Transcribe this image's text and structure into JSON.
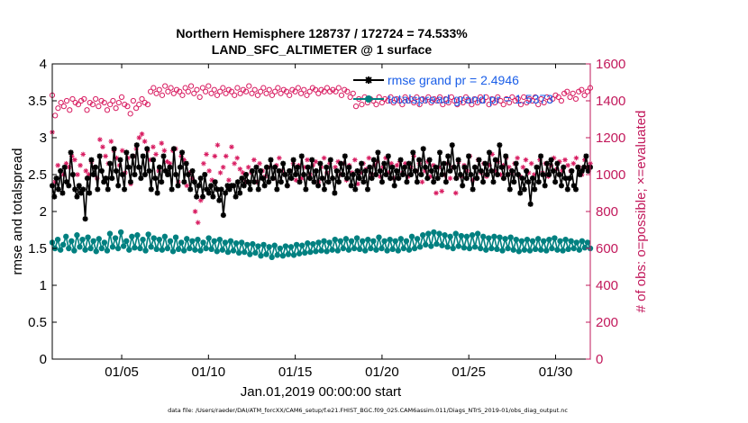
{
  "chart_data": {
    "type": "line",
    "title": "Northern Hemisphere 128737 / 172724 = 74.533%",
    "subtitle": "LAND_SFC_ALTIMETER @ 1 surface",
    "xlabel": "Jan.01,2019 00:00:00 start",
    "ylabel": "rmse and totalspread",
    "ylabel_right": "# of obs: o=possible; ×=evaluated",
    "xlim": [
      1,
      32
    ],
    "ylim": [
      0,
      4
    ],
    "ylim_right": [
      0,
      1600
    ],
    "x_ticks": [
      5,
      10,
      15,
      20,
      25,
      30
    ],
    "x_tick_labels": [
      "01/05",
      "01/10",
      "01/15",
      "01/20",
      "01/25",
      "01/30"
    ],
    "y_ticks": [
      0,
      0.5,
      1,
      1.5,
      2,
      2.5,
      3,
      3.5,
      4
    ],
    "y_tick_labels": [
      "0",
      "0.5",
      "1",
      "1.5",
      "2",
      "2.5",
      "3",
      "3.5",
      "4"
    ],
    "y_ticks_right": [
      0,
      200,
      400,
      600,
      800,
      1000,
      1200,
      1400,
      1600
    ],
    "y_tick_labels_right": [
      "0",
      "200",
      "400",
      "600",
      "800",
      "1000",
      "1200",
      "1400",
      "1600"
    ],
    "grid": false,
    "legend_position": "top-right",
    "colors": {
      "rmse": "#000000",
      "totalspread": "#008080",
      "obs": "#d81b60",
      "right_axis": "#c2185b"
    },
    "series": [
      {
        "name": "rmse grand pr = 2.4946",
        "axis": "left",
        "values": [
          2.35,
          2.2,
          2.45,
          2.3,
          2.55,
          2.25,
          2.6,
          2.4,
          2.35,
          2.8,
          2.5,
          2.3,
          2.2,
          2.35,
          2.25,
          2.3,
          1.9,
          2.45,
          2.25,
          2.7,
          2.5,
          2.6,
          2.3,
          2.75,
          2.55,
          2.4,
          2.45,
          2.3,
          2.65,
          2.45,
          2.85,
          2.55,
          2.35,
          2.7,
          2.5,
          2.3,
          2.8,
          2.6,
          2.4,
          2.75,
          2.5,
          2.9,
          2.6,
          2.45,
          2.75,
          2.5,
          2.85,
          2.55,
          2.3,
          2.7,
          2.45,
          2.25,
          2.6,
          2.4,
          2.75,
          2.55,
          2.5,
          2.6,
          2.3,
          2.85,
          2.5,
          2.35,
          2.6,
          2.8,
          2.4,
          2.65,
          2.5,
          2.3,
          2.55,
          2.4,
          2.2,
          2.35,
          2.45,
          2.2,
          2.5,
          2.3,
          2.25,
          2.35,
          2.2,
          2.4,
          2.3,
          2.15,
          2.3,
          1.95,
          2.25,
          2.35,
          2.3,
          2.35,
          2.35,
          2.2,
          2.4,
          2.25,
          2.45,
          2.35,
          2.5,
          2.4,
          2.3,
          2.55,
          2.4,
          2.6,
          2.3,
          2.55,
          2.45,
          2.35,
          2.6,
          2.4,
          2.7,
          2.45,
          2.6,
          2.3,
          2.55,
          2.4,
          2.65,
          2.5,
          2.35,
          2.55,
          2.45,
          2.7,
          2.5,
          2.6,
          2.4,
          2.75,
          2.5,
          2.3,
          2.6,
          2.45,
          2.7,
          2.4,
          2.55,
          2.35,
          2.65,
          2.45,
          2.3,
          2.6,
          2.4,
          2.7,
          2.45,
          2.25,
          2.55,
          2.4,
          2.65,
          2.5,
          2.75,
          2.45,
          2.6,
          2.35,
          2.5,
          2.3,
          2.55,
          2.45,
          2.65,
          2.4,
          2.55,
          2.3,
          2.6,
          2.45,
          2.7,
          2.5,
          2.8,
          2.55,
          2.4,
          2.65,
          2.5,
          2.75,
          2.45,
          2.6,
          2.35,
          2.55,
          2.45,
          2.7,
          2.5,
          2.6,
          2.4,
          2.65,
          2.5,
          2.8,
          2.55,
          2.4,
          2.7,
          2.5,
          2.85,
          2.6,
          2.45,
          2.7,
          2.55,
          2.4,
          2.6,
          2.45,
          2.8,
          2.5,
          2.65,
          2.4,
          2.75,
          2.55,
          2.9,
          2.6,
          2.45,
          2.7,
          2.5,
          2.35,
          2.6,
          2.45,
          2.75,
          2.5,
          2.3,
          2.6,
          2.45,
          2.7,
          2.55,
          2.4,
          2.65,
          2.5,
          2.8,
          2.55,
          2.4,
          2.7,
          2.5,
          2.9,
          2.6,
          2.45,
          2.75,
          2.5,
          2.3,
          2.55,
          2.4,
          2.65,
          2.5,
          2.25,
          2.45,
          2.3,
          2.55,
          2.4,
          2.1,
          2.45,
          2.3,
          2.6,
          2.4,
          2.75,
          2.5,
          2.35,
          2.65,
          2.5,
          2.7,
          2.55,
          2.4,
          2.65,
          2.5,
          2.35,
          2.6,
          2.45,
          2.3,
          2.45,
          2.55,
          2.35,
          2.3,
          2.6,
          2.5,
          2.55,
          2.6,
          2.75,
          2.55,
          2.6
        ]
      },
      {
        "name": "totalspread grand pr = 1.5373",
        "axis": "left",
        "values": [
          1.58,
          1.5,
          1.62,
          1.48,
          1.55,
          1.66,
          1.5,
          1.6,
          1.47,
          1.68,
          1.52,
          1.62,
          1.48,
          1.65,
          1.5,
          1.6,
          1.46,
          1.63,
          1.5,
          1.58,
          1.47,
          1.7,
          1.52,
          1.64,
          1.5,
          1.72,
          1.53,
          1.6,
          1.48,
          1.66,
          1.51,
          1.68,
          1.5,
          1.62,
          1.47,
          1.69,
          1.52,
          1.64,
          1.49,
          1.62,
          1.48,
          1.66,
          1.5,
          1.6,
          1.46,
          1.65,
          1.49,
          1.58,
          1.47,
          1.63,
          1.5,
          1.6,
          1.48,
          1.62,
          1.47,
          1.58,
          1.5,
          1.64,
          1.49,
          1.6,
          1.46,
          1.62,
          1.48,
          1.58,
          1.45,
          1.6,
          1.47,
          1.57,
          1.44,
          1.58,
          1.45,
          1.55,
          1.42,
          1.56,
          1.44,
          1.53,
          1.4,
          1.55,
          1.42,
          1.52,
          1.38,
          1.54,
          1.41,
          1.5,
          1.4,
          1.53,
          1.42,
          1.52,
          1.41,
          1.55,
          1.43,
          1.54,
          1.44,
          1.57,
          1.45,
          1.56,
          1.46,
          1.58,
          1.47,
          1.6,
          1.46,
          1.58,
          1.48,
          1.62,
          1.47,
          1.6,
          1.5,
          1.63,
          1.48,
          1.6,
          1.5,
          1.64,
          1.49,
          1.6,
          1.47,
          1.62,
          1.5,
          1.6,
          1.48,
          1.65,
          1.5,
          1.6,
          1.47,
          1.62,
          1.49,
          1.6,
          1.47,
          1.63,
          1.5,
          1.6,
          1.48,
          1.66,
          1.5,
          1.63,
          1.52,
          1.68,
          1.55,
          1.7,
          1.53,
          1.72,
          1.56,
          1.7,
          1.54,
          1.68,
          1.52,
          1.66,
          1.5,
          1.7,
          1.53,
          1.67,
          1.51,
          1.66,
          1.5,
          1.68,
          1.52,
          1.7,
          1.5,
          1.66,
          1.48,
          1.64,
          1.5,
          1.66,
          1.49,
          1.65,
          1.47,
          1.63,
          1.5,
          1.65,
          1.48,
          1.62,
          1.46,
          1.6,
          1.48,
          1.62,
          1.47,
          1.6,
          1.49,
          1.63,
          1.48,
          1.6,
          1.47,
          1.62,
          1.5,
          1.64,
          1.48,
          1.6,
          1.47,
          1.62,
          1.49,
          1.6,
          1.5,
          1.58,
          1.48,
          1.6,
          1.51,
          1.58,
          1.5
        ]
      },
      {
        "name": "possible",
        "axis": "right",
        "marker": "circle",
        "values": [
          1430,
          1320,
          1360,
          1390,
          1370,
          1400,
          1350,
          1410,
          1390,
          1380,
          1400,
          1410,
          1350,
          1390,
          1380,
          1410,
          1370,
          1400,
          1390,
          1350,
          1380,
          1400,
          1360,
          1390,
          1420,
          1380,
          1370,
          1330,
          1400,
          1360,
          1380,
          1410,
          1390,
          1380,
          1450,
          1470,
          1440,
          1460,
          1430,
          1480,
          1450,
          1470,
          1440,
          1460,
          1450,
          1430,
          1470,
          1450,
          1480,
          1440,
          1460,
          1420,
          1470,
          1450,
          1480,
          1440,
          1460,
          1430,
          1450,
          1470,
          1440,
          1460,
          1450,
          1430,
          1470,
          1440,
          1460,
          1450,
          1480,
          1440,
          1460,
          1430,
          1450,
          1470,
          1440,
          1460,
          1430,
          1450,
          1470,
          1440,
          1460,
          1450,
          1430,
          1460,
          1450,
          1470,
          1440,
          1460,
          1430,
          1450,
          1470,
          1460,
          1440,
          1460,
          1450,
          1470,
          1450,
          1460,
          1450,
          1470,
          1430,
          1460,
          1450,
          1420,
          1440,
          1370,
          1410,
          1380,
          1420,
          1390,
          1410,
          1400,
          1380,
          1420,
          1390,
          1410,
          1400,
          1420,
          1390,
          1410,
          1400,
          1380,
          1420,
          1400,
          1410,
          1390,
          1420,
          1380,
          1410,
          1400,
          1420,
          1390,
          1410,
          1400,
          1420,
          1380,
          1410,
          1390,
          1420,
          1400,
          1380,
          1410,
          1390,
          1420,
          1400,
          1380,
          1410,
          1390,
          1420,
          1400,
          1420,
          1380,
          1410,
          1390,
          1420,
          1400,
          1380,
          1410,
          1390,
          1420,
          1400,
          1410,
          1380,
          1420,
          1390,
          1410,
          1400,
          1420,
          1380,
          1410,
          1390,
          1420,
          1400,
          1410,
          1430,
          1420,
          1400,
          1440,
          1450,
          1420,
          1440,
          1410,
          1450,
          1460,
          1430,
          1450,
          1470
        ]
      },
      {
        "name": "evaluated",
        "axis": "right",
        "marker": "asterisk",
        "values": [
          1230,
          960,
          1050,
          1020,
          1000,
          1060,
          1040,
          1100,
          1080,
          1000,
          1050,
          1110,
          1020,
          1000,
          1070,
          1040,
          980,
          1190,
          1150,
          1100,
          1060,
          1180,
          1130,
          1090,
          1050,
          1130,
          1010,
          1090,
          950,
          1100,
          1140,
          1200,
          1220,
          1180,
          1130,
          1080,
          1150,
          1110,
          1020,
          1170,
          1130,
          1070,
          1060,
          1130,
          1140,
          960,
          1100,
          1080,
          940,
          1010,
          980,
          800,
          740,
          860,
          1060,
          1110,
          1020,
          970,
          1100,
          1160,
          1010,
          1040,
          1100,
          970,
          1150,
          1060,
          1090,
          1030,
          1010,
          960,
          1040,
          1010,
          1080,
          960,
          1060,
          1020,
          990,
          1040,
          1080,
          980,
          1050,
          1090,
          1020,
          1000,
          940,
          1020,
          1060,
          970,
          1050,
          980,
          1040,
          1080,
          1000,
          1050,
          1070,
          960,
          1040,
          1090,
          1010,
          1060,
          980,
          1040,
          1070,
          1000,
          1060,
          970,
          1050,
          1010,
          1080,
          950,
          1010,
          1060,
          1030,
          1090,
          1000,
          1050,
          1070,
          990,
          1040,
          1090,
          1010,
          1060,
          980,
          1050,
          1070,
          1010,
          1060,
          990,
          1040,
          1100,
          1020,
          1060,
          960,
          1020,
          1070,
          990,
          1050,
          900,
          1040,
          910,
          1000,
          1060,
          980,
          1040,
          900,
          1070,
          990,
          1050,
          1020,
          1100,
          970,
          1040,
          1080,
          1010,
          1060,
          990,
          1050,
          1110,
          1020,
          1070,
          1000,
          1050,
          1090,
          1040,
          1010,
          1060,
          1090,
          990,
          1040,
          1080,
          1010,
          1060,
          1000,
          1040,
          1080,
          1010,
          1060,
          990,
          1050,
          1090,
          1030,
          1070,
          1020,
          1080,
          1050,
          1020,
          1060,
          1090,
          1040,
          1000,
          1080,
          1040,
          1060
        ]
      }
    ],
    "footer": "data file: /Users/raeder/DAI/ATM_forcXX/CAM6_setup/f.e21.FHIST_BGC.f09_025.CAM6assim.011/Diags_NTrS_2019-01/obs_diag_output.nc"
  }
}
